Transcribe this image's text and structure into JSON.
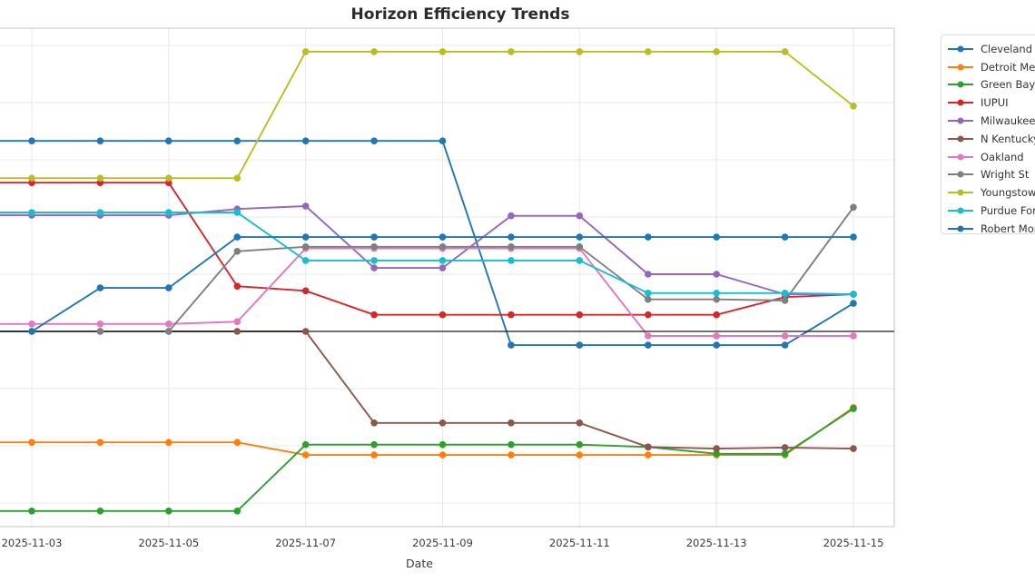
{
  "title": "Horizon Efficiency Trends",
  "xlabel": "Date",
  "style": {
    "grid_color": "#e8e8e8",
    "spine_color": "#cfcfcf",
    "zero_line_color": "#1a1a1a",
    "tick_text_color": "#3a3a3a",
    "title_color": "#2b2b2b",
    "legend_border_color": "#d9d9d9",
    "background": "#ffffff"
  },
  "chart_data": {
    "type": "line",
    "x": [
      "2025-11-03",
      "2025-11-04",
      "2025-11-05",
      "2025-11-06",
      "2025-11-07",
      "2025-11-08",
      "2025-11-09",
      "2025-11-10",
      "2025-11-11",
      "2025-11-12",
      "2025-11-13",
      "2025-11-14",
      "2025-11-15"
    ],
    "x_tick_labels": [
      "2025-11-03",
      "2025-11-05",
      "2025-11-07",
      "2025-11-09",
      "2025-11-11",
      "2025-11-13",
      "2025-11-15"
    ],
    "grid": true,
    "markers": "circle, every point",
    "zero_line": true,
    "y_axis_labels_visible": false,
    "value_unit_note": "values are in gridline units relative to the black zero line (y tick labels are cropped out of the image)",
    "ylim_units": [
      -3.41,
      5.3
    ],
    "legend_position": "upper right, clipped at right image edge",
    "series": [
      {
        "name": "Cleveland St",
        "color": "#1f77b4",
        "values": [
          3.33,
          3.33,
          3.33,
          3.33,
          3.33,
          3.33,
          3.33,
          -0.24,
          -0.24,
          -0.24,
          -0.24,
          -0.24,
          0.49
        ]
      },
      {
        "name": "Detroit Mercy",
        "color": "#ff7f0e",
        "values": [
          -1.94,
          -1.94,
          -1.94,
          -1.94,
          -2.16,
          -2.16,
          -2.16,
          -2.16,
          -2.16,
          -2.16,
          -2.16,
          -2.16,
          -1.33
        ]
      },
      {
        "name": "Green Bay",
        "color": "#2ca02c",
        "values": [
          -3.14,
          -3.14,
          -3.14,
          -3.14,
          -1.98,
          -1.98,
          -1.98,
          -1.98,
          -1.98,
          -2.02,
          -2.14,
          -2.14,
          -1.35
        ]
      },
      {
        "name": "IUPUI",
        "color": "#d62728",
        "values": [
          2.6,
          2.6,
          2.6,
          0.79,
          0.71,
          0.29,
          0.29,
          0.29,
          0.29,
          0.29,
          0.29,
          0.6,
          0.65
        ]
      },
      {
        "name": "Milwaukee",
        "color": "#9467bd",
        "values": [
          2.03,
          2.03,
          2.03,
          2.14,
          2.19,
          1.11,
          1.11,
          2.02,
          2.02,
          1.0,
          1.0,
          0.65,
          0.65
        ]
      },
      {
        "name": "N Kentucky",
        "color": "#8c564b",
        "values": [
          0.0,
          0.0,
          0.0,
          0.0,
          0.0,
          -1.6,
          -1.6,
          -1.6,
          -1.6,
          -2.02,
          -2.05,
          -2.03,
          -2.05
        ]
      },
      {
        "name": "Oakland",
        "color": "#e377c2",
        "values": [
          0.13,
          0.13,
          0.13,
          0.17,
          1.45,
          1.45,
          1.45,
          1.45,
          1.45,
          -0.08,
          -0.08,
          -0.08,
          -0.08
        ]
      },
      {
        "name": "Wright St",
        "color": "#7f7f7f",
        "values": [
          0.0,
          0.0,
          0.0,
          1.4,
          1.48,
          1.48,
          1.48,
          1.48,
          1.48,
          0.56,
          0.56,
          0.54,
          2.17
        ]
      },
      {
        "name": "Youngstown St",
        "color": "#bcbd22",
        "values": [
          2.68,
          2.68,
          2.68,
          2.68,
          4.89,
          4.89,
          4.89,
          4.89,
          4.89,
          4.89,
          4.89,
          4.89,
          3.94
        ]
      },
      {
        "name": "Purdue Fort Wayne",
        "color": "#17becf",
        "values": [
          2.08,
          2.08,
          2.08,
          2.08,
          1.24,
          1.24,
          1.24,
          1.24,
          1.24,
          0.67,
          0.67,
          0.67,
          0.65
        ]
      },
      {
        "name": "Robert Morris",
        "color": "#1f77b4",
        "values": [
          0.0,
          0.76,
          0.76,
          1.65,
          1.65,
          1.65,
          1.65,
          1.65,
          1.65,
          1.65,
          1.65,
          1.65,
          1.65
        ]
      }
    ]
  }
}
